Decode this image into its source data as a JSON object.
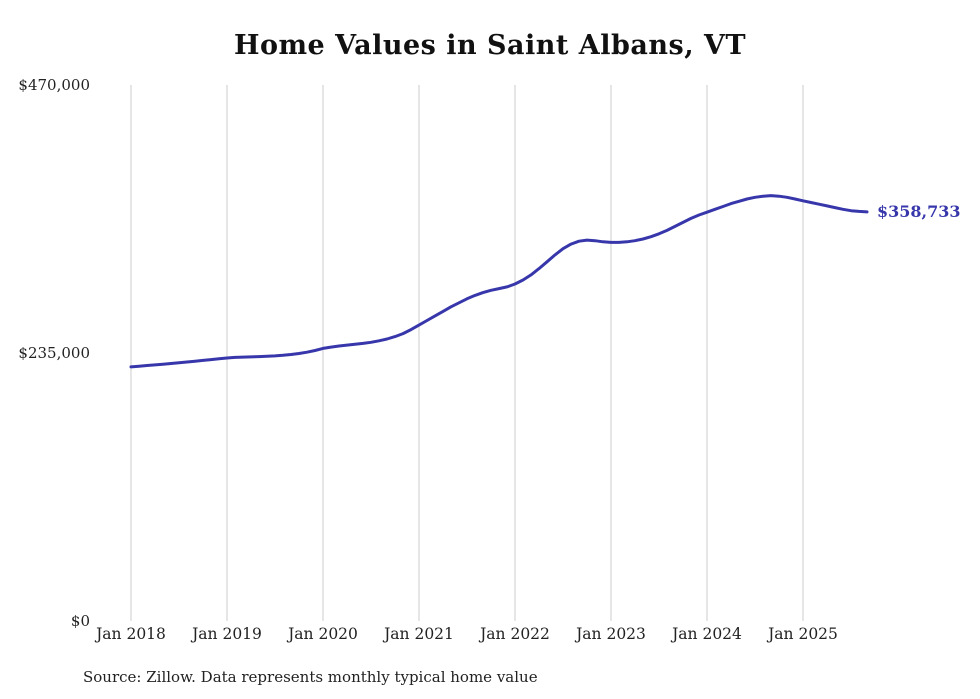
{
  "title": "Home Values in Saint Albans, VT",
  "source_note": "Source: Zillow. Data represents monthly typical home value",
  "end_label": "$358,733",
  "colors": {
    "line": "#3737ab",
    "grid": "#cccccc",
    "text": "#222222",
    "background": "#ffffff"
  },
  "chart_data": {
    "type": "line",
    "title": "Home Values in Saint Albans, VT",
    "x_start": "2018-01",
    "x_interval": "monthly",
    "x_end": "2025-09",
    "series": [
      {
        "name": "Monthly typical home value",
        "values": [
          222800,
          223400,
          224000,
          224600,
          225200,
          225800,
          226400,
          227100,
          227800,
          228500,
          229200,
          229900,
          230600,
          231100,
          231400,
          231600,
          231800,
          232100,
          232500,
          233000,
          233700,
          234600,
          235700,
          237200,
          239000,
          240200,
          241100,
          241900,
          242600,
          243400,
          244400,
          245700,
          247300,
          249400,
          252000,
          255500,
          259500,
          263500,
          267500,
          271500,
          275500,
          279000,
          282500,
          285500,
          288000,
          290000,
          291500,
          293000,
          295500,
          299000,
          303500,
          309000,
          315000,
          321000,
          326500,
          330500,
          333000,
          334000,
          333500,
          332500,
          332000,
          332000,
          332500,
          333500,
          335000,
          337000,
          339500,
          342500,
          346000,
          349500,
          353000,
          356000,
          358500,
          361000,
          363500,
          366000,
          368000,
          370000,
          371500,
          372500,
          373000,
          372500,
          371500,
          370000,
          368500,
          367000,
          365500,
          364000,
          362500,
          361000,
          359800,
          359200,
          358733
        ]
      }
    ],
    "ylim": [
      0,
      470000
    ],
    "yticks": [
      {
        "value": 470000,
        "label": "$470,000"
      },
      {
        "value": 235000,
        "label": "$235,000"
      },
      {
        "value": 0,
        "label": "$0"
      }
    ],
    "xticks": [
      "Jan 2018",
      "Jan 2019",
      "Jan 2020",
      "Jan 2021",
      "Jan 2022",
      "Jan 2023",
      "Jan 2024",
      "Jan 2025"
    ],
    "grid": "vertical-only",
    "legend": "none",
    "annotation": {
      "text": "$358,733",
      "position": "line-end"
    }
  }
}
